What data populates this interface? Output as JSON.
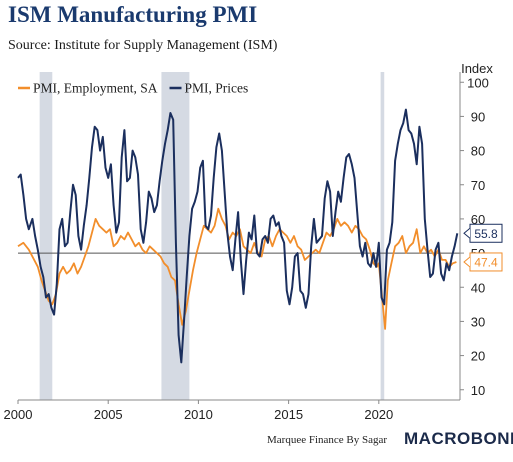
{
  "header": {
    "title": "ISM Manufacturing PMI",
    "subtitle": "Source: Institute for Supply Management (ISM)"
  },
  "footer": {
    "credit": "Marquee Finance By Sagar",
    "brand": "MACROBOND"
  },
  "chart_data": {
    "type": "line",
    "title": "ISM Manufacturing PMI",
    "ylabel": "Index",
    "xlim": [
      2000,
      2024.5
    ],
    "ylim": [
      7,
      103
    ],
    "y_ticks": [
      10,
      20,
      30,
      40,
      50,
      60,
      70,
      80,
      90,
      100
    ],
    "x_ticks": [
      2000,
      2005,
      2010,
      2015,
      2020
    ],
    "y_tick_labels": [
      "10",
      "20",
      "30",
      "40",
      "50",
      "60",
      "70",
      "80",
      "90",
      "100"
    ],
    "x_tick_labels": [
      "2000",
      "2005",
      "2010",
      "2015",
      "2020"
    ],
    "reference_line": 50,
    "legend_position": "top-left",
    "recessions": [
      [
        2001.2,
        2001.9
      ],
      [
        2007.95,
        2009.5
      ],
      [
        2020.1,
        2020.3
      ]
    ],
    "series": [
      {
        "name": "PMI, Employment, SA",
        "color": "#f28e2b",
        "last_label": "47.4",
        "points": [
          [
            2000.0,
            52
          ],
          [
            2000.3,
            53
          ],
          [
            2000.6,
            51
          ],
          [
            2000.9,
            48
          ],
          [
            2001.1,
            46
          ],
          [
            2001.3,
            42
          ],
          [
            2001.5,
            39
          ],
          [
            2001.7,
            36
          ],
          [
            2001.9,
            35
          ],
          [
            2002.1,
            38
          ],
          [
            2002.3,
            44
          ],
          [
            2002.5,
            46
          ],
          [
            2002.7,
            44
          ],
          [
            2002.9,
            45
          ],
          [
            2003.1,
            47
          ],
          [
            2003.3,
            44
          ],
          [
            2003.5,
            46
          ],
          [
            2003.7,
            49
          ],
          [
            2003.9,
            52
          ],
          [
            2004.1,
            56
          ],
          [
            2004.3,
            60
          ],
          [
            2004.5,
            58
          ],
          [
            2004.7,
            57
          ],
          [
            2004.9,
            56
          ],
          [
            2005.1,
            57
          ],
          [
            2005.3,
            52
          ],
          [
            2005.5,
            53
          ],
          [
            2005.7,
            55
          ],
          [
            2005.9,
            54
          ],
          [
            2006.1,
            56
          ],
          [
            2006.3,
            54
          ],
          [
            2006.5,
            52
          ],
          [
            2006.7,
            53
          ],
          [
            2006.9,
            51
          ],
          [
            2007.1,
            50
          ],
          [
            2007.3,
            52
          ],
          [
            2007.5,
            51
          ],
          [
            2007.7,
            50
          ],
          [
            2007.9,
            49
          ],
          [
            2008.1,
            47
          ],
          [
            2008.3,
            46
          ],
          [
            2008.5,
            43
          ],
          [
            2008.7,
            42
          ],
          [
            2008.9,
            35
          ],
          [
            2009.1,
            29
          ],
          [
            2009.3,
            33
          ],
          [
            2009.5,
            39
          ],
          [
            2009.7,
            45
          ],
          [
            2009.9,
            50
          ],
          [
            2010.1,
            54
          ],
          [
            2010.3,
            58
          ],
          [
            2010.5,
            57
          ],
          [
            2010.7,
            56
          ],
          [
            2010.9,
            58
          ],
          [
            2011.1,
            63
          ],
          [
            2011.3,
            60
          ],
          [
            2011.5,
            58
          ],
          [
            2011.7,
            54
          ],
          [
            2011.9,
            56
          ],
          [
            2012.1,
            55
          ],
          [
            2012.3,
            57
          ],
          [
            2012.5,
            52
          ],
          [
            2012.7,
            51
          ],
          [
            2012.9,
            50
          ],
          [
            2013.1,
            53
          ],
          [
            2013.3,
            50
          ],
          [
            2013.5,
            49
          ],
          [
            2013.7,
            54
          ],
          [
            2013.9,
            55
          ],
          [
            2014.1,
            52
          ],
          [
            2014.3,
            55
          ],
          [
            2014.5,
            57
          ],
          [
            2014.7,
            56
          ],
          [
            2014.9,
            55
          ],
          [
            2015.1,
            53
          ],
          [
            2015.3,
            55
          ],
          [
            2015.5,
            52
          ],
          [
            2015.7,
            51
          ],
          [
            2015.9,
            48
          ],
          [
            2016.1,
            49
          ],
          [
            2016.3,
            50
          ],
          [
            2016.5,
            51
          ],
          [
            2016.7,
            50
          ],
          [
            2016.9,
            53
          ],
          [
            2017.1,
            56
          ],
          [
            2017.3,
            55
          ],
          [
            2017.5,
            57
          ],
          [
            2017.7,
            60
          ],
          [
            2017.9,
            58
          ],
          [
            2018.1,
            59
          ],
          [
            2018.3,
            58
          ],
          [
            2018.5,
            56
          ],
          [
            2018.7,
            58
          ],
          [
            2018.9,
            57
          ],
          [
            2019.1,
            55
          ],
          [
            2019.3,
            54
          ],
          [
            2019.5,
            51
          ],
          [
            2019.7,
            47
          ],
          [
            2019.9,
            46
          ],
          [
            2020.0,
            47
          ],
          [
            2020.2,
            36
          ],
          [
            2020.35,
            27.8
          ],
          [
            2020.5,
            42
          ],
          [
            2020.7,
            47
          ],
          [
            2020.9,
            52
          ],
          [
            2021.1,
            53
          ],
          [
            2021.3,
            55
          ],
          [
            2021.5,
            50
          ],
          [
            2021.7,
            52
          ],
          [
            2021.9,
            53
          ],
          [
            2022.1,
            57
          ],
          [
            2022.3,
            50
          ],
          [
            2022.5,
            52
          ],
          [
            2022.7,
            50
          ],
          [
            2022.9,
            51
          ],
          [
            2023.1,
            49
          ],
          [
            2023.3,
            51
          ],
          [
            2023.5,
            48
          ],
          [
            2023.7,
            48
          ],
          [
            2023.9,
            46
          ],
          [
            2024.1,
            47
          ],
          [
            2024.3,
            47.4
          ]
        ]
      },
      {
        "name": "PMI, Prices",
        "color": "#1b2f5e",
        "last_label": "55.8",
        "points": [
          [
            2000.0,
            72
          ],
          [
            2000.15,
            73
          ],
          [
            2000.3,
            67
          ],
          [
            2000.45,
            60
          ],
          [
            2000.6,
            57
          ],
          [
            2000.8,
            60
          ],
          [
            2000.95,
            55
          ],
          [
            2001.1,
            51
          ],
          [
            2001.25,
            46
          ],
          [
            2001.4,
            43
          ],
          [
            2001.55,
            37
          ],
          [
            2001.7,
            38
          ],
          [
            2001.85,
            34
          ],
          [
            2002.0,
            32
          ],
          [
            2002.15,
            41
          ],
          [
            2002.3,
            57
          ],
          [
            2002.45,
            60
          ],
          [
            2002.6,
            52
          ],
          [
            2002.75,
            53
          ],
          [
            2002.9,
            62
          ],
          [
            2003.05,
            70
          ],
          [
            2003.2,
            67
          ],
          [
            2003.35,
            55
          ],
          [
            2003.5,
            51
          ],
          [
            2003.65,
            58
          ],
          [
            2003.8,
            64
          ],
          [
            2003.95,
            72
          ],
          [
            2004.1,
            81
          ],
          [
            2004.25,
            87
          ],
          [
            2004.4,
            86
          ],
          [
            2004.55,
            80
          ],
          [
            2004.7,
            84
          ],
          [
            2004.85,
            75
          ],
          [
            2005.0,
            72
          ],
          [
            2005.15,
            76
          ],
          [
            2005.3,
            64
          ],
          [
            2005.45,
            56
          ],
          [
            2005.6,
            59
          ],
          [
            2005.75,
            78
          ],
          [
            2005.9,
            86
          ],
          [
            2006.05,
            71
          ],
          [
            2006.2,
            72
          ],
          [
            2006.35,
            80
          ],
          [
            2006.5,
            78
          ],
          [
            2006.65,
            73
          ],
          [
            2006.8,
            57
          ],
          [
            2006.95,
            53
          ],
          [
            2007.1,
            59
          ],
          [
            2007.25,
            68
          ],
          [
            2007.4,
            66
          ],
          [
            2007.55,
            62
          ],
          [
            2007.7,
            64
          ],
          [
            2007.85,
            71
          ],
          [
            2008.0,
            77
          ],
          [
            2008.15,
            82
          ],
          [
            2008.3,
            86
          ],
          [
            2008.45,
            91
          ],
          [
            2008.6,
            89
          ],
          [
            2008.75,
            53
          ],
          [
            2008.9,
            26
          ],
          [
            2009.05,
            18
          ],
          [
            2009.2,
            30
          ],
          [
            2009.35,
            43
          ],
          [
            2009.5,
            55
          ],
          [
            2009.65,
            63
          ],
          [
            2009.8,
            65
          ],
          [
            2009.95,
            68
          ],
          [
            2010.1,
            75
          ],
          [
            2010.25,
            77
          ],
          [
            2010.4,
            58
          ],
          [
            2010.55,
            57
          ],
          [
            2010.7,
            61
          ],
          [
            2010.85,
            72
          ],
          [
            2011.0,
            81
          ],
          [
            2011.15,
            85
          ],
          [
            2011.3,
            80
          ],
          [
            2011.45,
            68
          ],
          [
            2011.6,
            56
          ],
          [
            2011.75,
            49
          ],
          [
            2011.9,
            45
          ],
          [
            2012.05,
            54
          ],
          [
            2012.2,
            62
          ],
          [
            2012.35,
            48
          ],
          [
            2012.5,
            38
          ],
          [
            2012.65,
            48
          ],
          [
            2012.8,
            56
          ],
          [
            2012.95,
            54
          ],
          [
            2013.1,
            61
          ],
          [
            2013.25,
            50
          ],
          [
            2013.4,
            49
          ],
          [
            2013.55,
            54
          ],
          [
            2013.7,
            55
          ],
          [
            2013.85,
            53
          ],
          [
            2014.0,
            60
          ],
          [
            2014.15,
            61
          ],
          [
            2014.3,
            58
          ],
          [
            2014.45,
            59
          ],
          [
            2014.6,
            55
          ],
          [
            2014.75,
            53
          ],
          [
            2014.9,
            39
          ],
          [
            2015.05,
            35
          ],
          [
            2015.2,
            40
          ],
          [
            2015.35,
            49
          ],
          [
            2015.5,
            50
          ],
          [
            2015.65,
            39
          ],
          [
            2015.8,
            38
          ],
          [
            2015.95,
            34
          ],
          [
            2016.1,
            38
          ],
          [
            2016.25,
            52
          ],
          [
            2016.4,
            60
          ],
          [
            2016.55,
            53
          ],
          [
            2016.7,
            54
          ],
          [
            2016.85,
            55
          ],
          [
            2017.0,
            66
          ],
          [
            2017.15,
            71
          ],
          [
            2017.3,
            68
          ],
          [
            2017.45,
            55
          ],
          [
            2017.6,
            62
          ],
          [
            2017.75,
            68
          ],
          [
            2017.9,
            65
          ],
          [
            2018.05,
            72
          ],
          [
            2018.2,
            78
          ],
          [
            2018.35,
            79
          ],
          [
            2018.5,
            76
          ],
          [
            2018.65,
            72
          ],
          [
            2018.8,
            62
          ],
          [
            2018.95,
            52
          ],
          [
            2019.1,
            49
          ],
          [
            2019.25,
            53
          ],
          [
            2019.4,
            47
          ],
          [
            2019.55,
            46
          ],
          [
            2019.7,
            50
          ],
          [
            2019.85,
            46
          ],
          [
            2020.0,
            53
          ],
          [
            2020.15,
            37
          ],
          [
            2020.3,
            35
          ],
          [
            2020.45,
            51
          ],
          [
            2020.6,
            53
          ],
          [
            2020.75,
            59
          ],
          [
            2020.9,
            77
          ],
          [
            2021.05,
            82
          ],
          [
            2021.2,
            86
          ],
          [
            2021.35,
            88
          ],
          [
            2021.5,
            92
          ],
          [
            2021.65,
            86
          ],
          [
            2021.8,
            85
          ],
          [
            2021.95,
            82
          ],
          [
            2022.1,
            76
          ],
          [
            2022.25,
            87
          ],
          [
            2022.4,
            82
          ],
          [
            2022.55,
            60
          ],
          [
            2022.7,
            51
          ],
          [
            2022.85,
            43
          ],
          [
            2023.0,
            44
          ],
          [
            2023.15,
            51
          ],
          [
            2023.3,
            53
          ],
          [
            2023.45,
            44
          ],
          [
            2023.6,
            42
          ],
          [
            2023.75,
            47
          ],
          [
            2023.9,
            45
          ],
          [
            2024.05,
            49
          ],
          [
            2024.2,
            52
          ],
          [
            2024.35,
            55.8
          ]
        ]
      }
    ]
  }
}
